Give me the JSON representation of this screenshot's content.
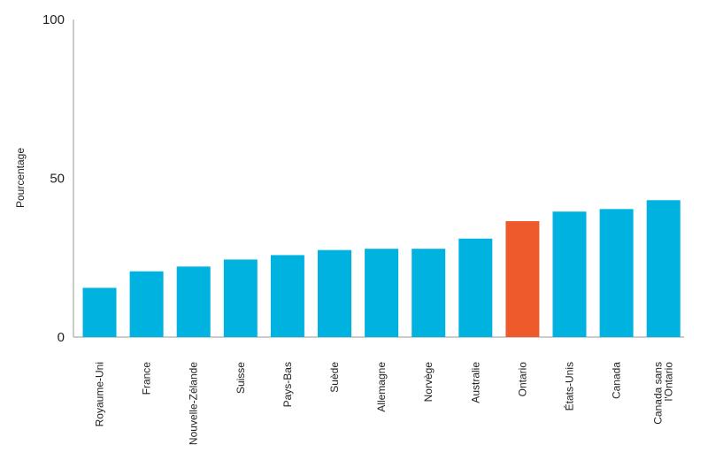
{
  "chart_data": {
    "type": "bar",
    "title": "",
    "xlabel": "",
    "ylabel": "Pourcentage",
    "ylim": [
      0,
      100
    ],
    "yticks": [
      0,
      50,
      100
    ],
    "grid": false,
    "categories": [
      "Royaume-Uni",
      "France",
      "Nouvelle-Zélande",
      "Suisse",
      "Pays-Bas",
      "Suède",
      "Allemagne",
      "Norvège",
      "Australie",
      "Ontario",
      "États-Unis",
      "Canada",
      "Canada sans l'Ontario"
    ],
    "category_lines": [
      [
        "Royaume-Uni"
      ],
      [
        "France"
      ],
      [
        "Nouvelle-Zélande"
      ],
      [
        "Suisse"
      ],
      [
        "Pays-Bas"
      ],
      [
        "Suède"
      ],
      [
        "Allemagne"
      ],
      [
        "Norvège"
      ],
      [
        "Australie"
      ],
      [
        "Ontario"
      ],
      [
        "États-Unis"
      ],
      [
        "Canada"
      ],
      [
        "Canada sans",
        "l'Ontario"
      ]
    ],
    "values": [
      15.5,
      20.7,
      22.2,
      24.4,
      25.8,
      27.4,
      27.8,
      27.8,
      31.0,
      36.5,
      39.5,
      40.3,
      43.1
    ],
    "highlight_category": "Ontario",
    "colors": {
      "bar": "#00b2e0",
      "highlight": "#ee5a2c",
      "axis": "#9a9a9a"
    }
  }
}
